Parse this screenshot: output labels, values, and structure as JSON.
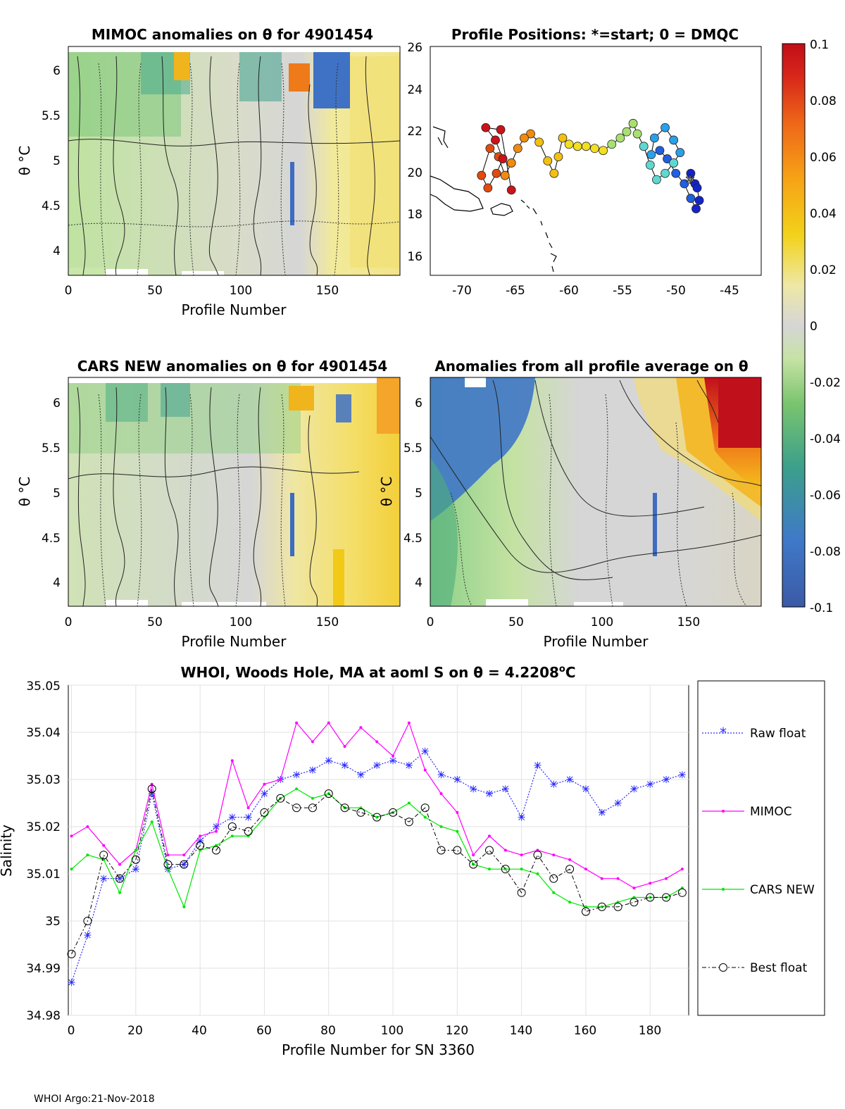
{
  "footer": "WHOI Argo:21-Nov-2018",
  "colors": {
    "raw": "#2b2bff",
    "mimoc": "#ff00ff",
    "cars": "#00e600",
    "best": "#000000"
  },
  "chart_data": [
    {
      "id": "mimoc_section",
      "type": "heatmap",
      "title": "MIMOC anomalies on θ  for 4901454",
      "xlabel": "Profile Number",
      "ylabel": "θ °C",
      "xlim": [
        0,
        192
      ],
      "ylim": [
        3.75,
        6.25
      ],
      "xticks": [
        "0",
        "50",
        "100",
        "150"
      ],
      "yticks": [
        "4",
        "4.5",
        "5",
        "5.5",
        "6"
      ]
    },
    {
      "id": "positions",
      "type": "scatter",
      "title": "Profile Positions: *=start; 0 = DMQC",
      "xlim": [
        -73,
        -42
      ],
      "ylim": [
        15,
        26
      ],
      "xticks": [
        "-70",
        "-65",
        "-60",
        "-55",
        "-50",
        "-45"
      ],
      "yticks": [
        "16",
        "18",
        "20",
        "22",
        "24",
        "26"
      ],
      "track_lon": [
        -48.2,
        -48.6,
        -48.0,
        -47.8,
        -48.1,
        -48.6,
        -49.2,
        -50.0,
        -50.8,
        -51.5,
        -52.3,
        -52.0,
        -51.0,
        -50.2,
        -49.6,
        -50.2,
        -51.0,
        -51.8,
        -52.4,
        -53.0,
        -53.6,
        -54.0,
        -54.6,
        -55.2,
        -56.0,
        -56.8,
        -57.6,
        -58.4,
        -59.2,
        -60.0,
        -60.6,
        -61.0,
        -61.4,
        -62.0,
        -62.8,
        -63.6,
        -64.2,
        -64.8,
        -65.4,
        -66.0,
        -66.6,
        -67.4,
        -68.2,
        -67.6,
        -66.8,
        -66.2,
        -66.9,
        -67.8,
        -66.4,
        -65.4
      ],
      "track_lat": [
        19.4,
        19.9,
        19.2,
        18.6,
        18.2,
        18.7,
        19.4,
        19.9,
        20.6,
        21.0,
        20.8,
        21.6,
        22.1,
        21.5,
        20.9,
        20.4,
        19.9,
        19.6,
        20.3,
        21.2,
        21.8,
        22.3,
        21.9,
        21.6,
        21.3,
        21.0,
        21.1,
        21.2,
        21.2,
        21.3,
        21.6,
        20.7,
        19.9,
        20.5,
        21.4,
        21.8,
        21.6,
        21.1,
        20.4,
        19.8,
        20.7,
        21.1,
        19.8,
        19.2,
        19.9,
        20.6,
        21.5,
        22.1,
        22.0,
        19.1
      ],
      "start_lon": -48.0,
      "start_lat": 19.5
    },
    {
      "id": "colorbar",
      "type": "heatmap",
      "range": [
        -0.1,
        0.1
      ],
      "ticks": [
        "0.1",
        "0.08",
        "0.06",
        "0.04",
        "0.02",
        "0",
        "-0.02",
        "-0.04",
        "-0.06",
        "-0.08",
        "-0.1"
      ]
    },
    {
      "id": "cars_section",
      "type": "heatmap",
      "title": "CARS NEW anomalies on θ for 4901454",
      "xlabel": "Profile Number",
      "ylabel": "θ °C",
      "xlim": [
        0,
        192
      ],
      "ylim": [
        3.75,
        6.25
      ],
      "xticks": [
        "0",
        "50",
        "100",
        "150"
      ],
      "yticks": [
        "4",
        "4.5",
        "5",
        "5.5",
        "6"
      ]
    },
    {
      "id": "avg_section",
      "type": "heatmap",
      "title": "Anomalies from all profile average on θ",
      "xlabel": "Profile Number",
      "ylabel": "θ °C",
      "xlim": [
        0,
        192
      ],
      "ylim": [
        3.75,
        6.25
      ],
      "xticks": [
        "0",
        "50",
        "100",
        "150"
      ],
      "yticks": [
        "4",
        "4.5",
        "5",
        "5.5",
        "6"
      ]
    },
    {
      "id": "salinity",
      "type": "line",
      "title_main": "WHOI, Woods Hole, MA at aoml S on θ = 4.2208",
      "title_sup": "o",
      "title_end": "C",
      "xlabel": "Profile Number for SN 3360",
      "ylabel": "Salinity",
      "xlim": [
        -1,
        192
      ],
      "ylim": [
        34.98,
        35.05
      ],
      "xticks": [
        "0",
        "20",
        "40",
        "60",
        "80",
        "100",
        "120",
        "140",
        "160",
        "180"
      ],
      "yticks": [
        "34.98",
        "34.99",
        "35",
        "35.01",
        "35.02",
        "35.03",
        "35.04",
        "35.05"
      ],
      "grid": true,
      "legend": [
        "Raw float",
        "MIMOC",
        "CARS NEW",
        "Best float"
      ],
      "series_x": [
        0,
        5,
        10,
        15,
        20,
        25,
        30,
        35,
        40,
        45,
        50,
        55,
        60,
        65,
        70,
        75,
        80,
        85,
        90,
        95,
        100,
        105,
        110,
        115,
        120,
        125,
        130,
        135,
        140,
        145,
        150,
        155,
        160,
        165,
        170,
        175,
        180,
        185,
        190
      ],
      "series": [
        {
          "name": "Raw float",
          "values": [
            34.987,
            34.997,
            35.009,
            35.009,
            35.011,
            35.027,
            35.011,
            35.012,
            35.017,
            35.02,
            35.022,
            35.022,
            35.027,
            35.03,
            35.031,
            35.032,
            35.034,
            35.033,
            35.031,
            35.033,
            35.034,
            35.033,
            35.036,
            35.031,
            35.03,
            35.028,
            35.027,
            35.028,
            35.022,
            35.033,
            35.029,
            35.03,
            35.028,
            35.023,
            35.025,
            35.028,
            35.029,
            35.03,
            35.031
          ]
        },
        {
          "name": "MIMOC",
          "values": [
            35.018,
            35.02,
            35.016,
            35.012,
            35.015,
            35.029,
            35.014,
            35.014,
            35.018,
            35.019,
            35.034,
            35.024,
            35.029,
            35.03,
            35.042,
            35.038,
            35.042,
            35.037,
            35.041,
            35.038,
            35.035,
            35.042,
            35.032,
            35.027,
            35.023,
            35.014,
            35.018,
            35.015,
            35.014,
            35.015,
            35.014,
            35.013,
            35.011,
            35.009,
            35.009,
            35.007,
            35.008,
            35.009,
            35.011
          ]
        },
        {
          "name": "CARS NEW",
          "values": [
            35.011,
            35.014,
            35.013,
            35.006,
            35.015,
            35.021,
            35.011,
            35.003,
            35.015,
            35.016,
            35.018,
            35.018,
            35.022,
            35.026,
            35.028,
            35.026,
            35.027,
            35.024,
            35.024,
            35.022,
            35.023,
            35.025,
            35.022,
            35.02,
            35.019,
            35.012,
            35.011,
            35.011,
            35.011,
            35.01,
            35.006,
            35.004,
            35.003,
            35.003,
            35.004,
            35.005,
            35.005,
            35.005,
            35.007
          ]
        },
        {
          "name": "Best float",
          "values": [
            34.993,
            35.0,
            35.014,
            35.009,
            35.013,
            35.028,
            35.012,
            35.012,
            35.016,
            35.015,
            35.02,
            35.019,
            35.023,
            35.026,
            35.024,
            35.024,
            35.027,
            35.024,
            35.023,
            35.022,
            35.023,
            35.021,
            35.024,
            35.015,
            35.015,
            35.012,
            35.015,
            35.011,
            35.006,
            35.014,
            35.009,
            35.011,
            35.002,
            35.003,
            35.003,
            35.004,
            35.005,
            35.005,
            35.006
          ]
        }
      ]
    }
  ]
}
